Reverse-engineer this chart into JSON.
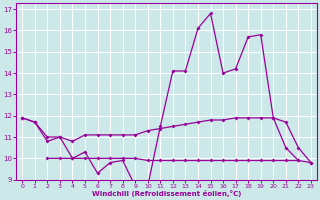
{
  "xlabel": "Windchill (Refroidissement éolien,°C)",
  "xlim": [
    -0.5,
    23.5
  ],
  "ylim": [
    9,
    17.3
  ],
  "yticks": [
    9,
    10,
    11,
    12,
    13,
    14,
    15,
    16,
    17
  ],
  "xticks": [
    0,
    1,
    2,
    3,
    4,
    5,
    6,
    7,
    8,
    9,
    10,
    11,
    12,
    13,
    14,
    15,
    16,
    17,
    18,
    19,
    20,
    21,
    22,
    23
  ],
  "bg_color": "#cce8e8",
  "line_color": "#990099",
  "grid_color": "#ffffff",
  "line1": {
    "x": [
      0,
      1,
      2,
      3,
      4,
      5,
      6,
      7,
      8,
      9,
      10,
      11,
      12,
      13,
      14,
      15,
      16,
      17,
      18,
      19,
      20,
      21,
      22
    ],
    "y": [
      11.9,
      11.7,
      10.8,
      11.0,
      10.0,
      10.3,
      9.3,
      9.8,
      9.9,
      8.7,
      8.7,
      11.5,
      14.1,
      14.1,
      16.1,
      16.8,
      14.0,
      14.2,
      15.7,
      15.8,
      11.9,
      10.5,
      9.9
    ]
  },
  "line2": {
    "x": [
      0,
      1,
      2,
      3,
      4,
      5,
      6,
      7,
      8,
      9,
      10,
      11,
      12,
      13,
      14,
      15,
      16,
      17,
      18,
      19,
      20,
      21,
      22,
      23
    ],
    "y": [
      11.9,
      11.7,
      11.0,
      11.0,
      10.8,
      11.1,
      11.1,
      11.1,
      11.1,
      11.1,
      11.3,
      11.4,
      11.5,
      11.6,
      11.7,
      11.8,
      11.8,
      11.9,
      11.9,
      11.9,
      11.9,
      11.7,
      10.5,
      9.8
    ]
  },
  "line3": {
    "x": [
      2,
      3,
      4,
      5,
      6,
      7,
      8,
      9,
      10,
      11,
      12,
      13,
      14,
      15,
      16,
      17,
      18,
      19,
      20,
      21,
      22,
      23
    ],
    "y": [
      10.0,
      10.0,
      10.0,
      10.0,
      10.0,
      10.0,
      10.0,
      10.0,
      9.9,
      9.9,
      9.9,
      9.9,
      9.9,
      9.9,
      9.9,
      9.9,
      9.9,
      9.9,
      9.9,
      9.9,
      9.9,
      9.8
    ]
  }
}
